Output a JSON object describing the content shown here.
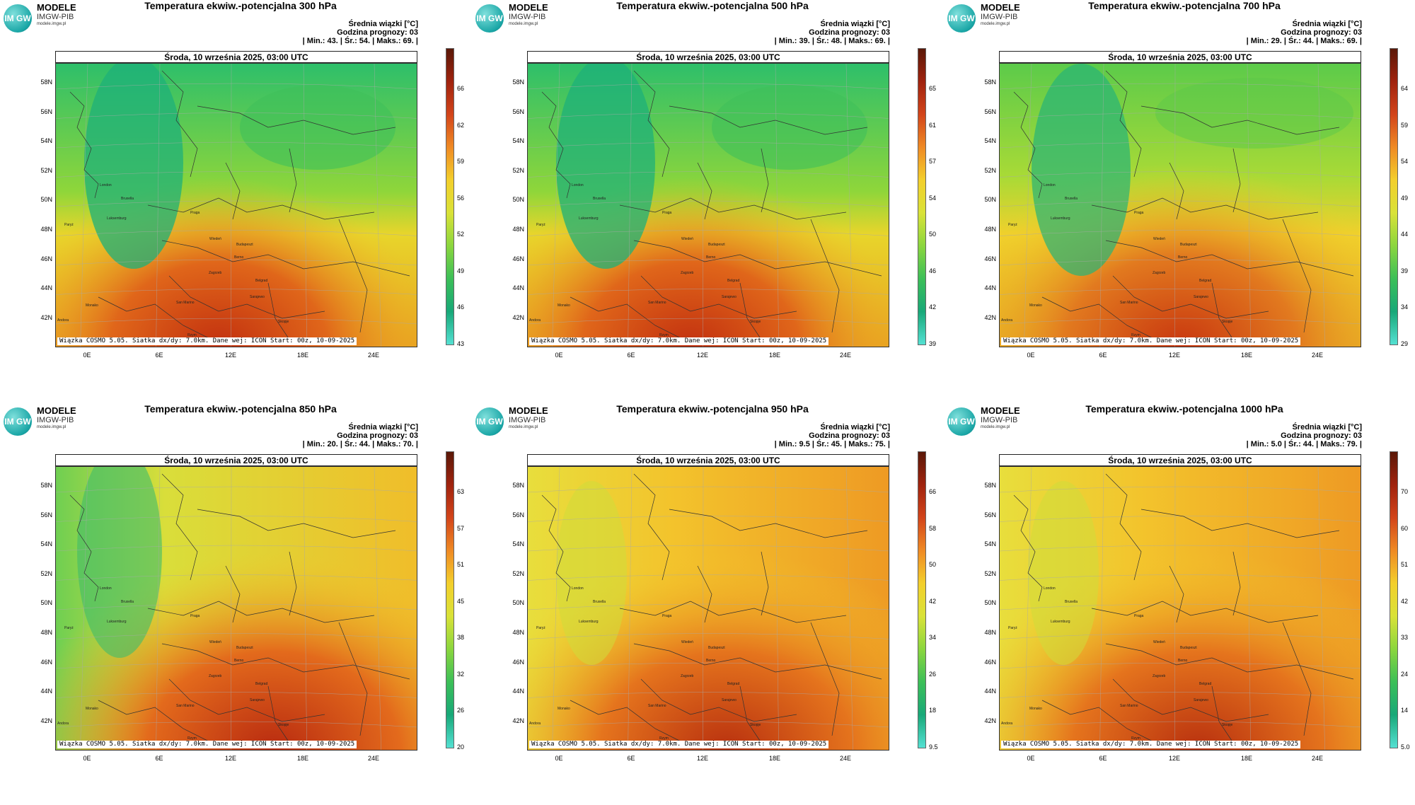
{
  "logo": {
    "mark": "IM GW",
    "line1": "MODELE",
    "line2": "IMGW-PIB",
    "line3": "modele.imgw.pl"
  },
  "common": {
    "stats_title": "Średnia wiązki [°C]",
    "forecast_hour": "Godzina prognozy: 03",
    "date": "Środa, 10 września 2025, 03:00 UTC",
    "footer": "Wiązka COSMO 5.05. Siatka dx/dy: 7.0km. Dane wej: ICON Start: 00z, 10-09-2025",
    "lat_labels": [
      "58N",
      "56N",
      "54N",
      "52N",
      "50N",
      "48N",
      "46N",
      "44N",
      "42N"
    ],
    "lon_labels": [
      "0E",
      "6E",
      "12E",
      "18E",
      "24E"
    ],
    "cities": [
      "London",
      "Bruxella",
      "Paryż",
      "Luksemburg",
      "Praga",
      "Wiedeń",
      "Budapeszt",
      "Berno",
      "Zagrzeb",
      "Belgrad",
      "Monako",
      "San Marino",
      "Sarajewo",
      "Rzym",
      "Skopje",
      "Andora"
    ]
  },
  "panels": [
    {
      "title": "Temperatura ekwiw.-potencjalna 300 hPa",
      "stats_line": "| Min.:    43. | Śr.:    54. | Maks.:    69. |",
      "cbar_labels": [
        "66",
        "62",
        "59",
        "56",
        "52",
        "49",
        "46",
        "43"
      ],
      "scheme": "upper"
    },
    {
      "title": "Temperatura ekwiw.-potencjalna 500 hPa",
      "stats_line": "| Min.:    39. | Śr.:    48. | Maks.:    69. |",
      "cbar_labels": [
        "65",
        "61",
        "57",
        "54",
        "50",
        "46",
        "42",
        "39"
      ],
      "scheme": "upper"
    },
    {
      "title": "Temperatura ekwiw.-potencjalna 700 hPa",
      "stats_line": "| Min.:    29. | Śr.:    44. | Maks.:    69. |",
      "cbar_labels": [
        "64",
        "59",
        "54",
        "49",
        "44",
        "39",
        "34",
        "29"
      ],
      "scheme": "mid"
    },
    {
      "title": "Temperatura ekwiw.-potencjalna 850 hPa",
      "stats_line": "| Min.:    20. | Śr.:    44. | Maks.:    70. |",
      "cbar_labels": [
        "63",
        "57",
        "51",
        "45",
        "38",
        "32",
        "26",
        "20"
      ],
      "scheme": "low"
    },
    {
      "title": "Temperatura ekwiw.-potencjalna 950 hPa",
      "stats_line": "| Min.:    9.5 | Śr.:    45. | Maks.:    75. |",
      "cbar_labels": [
        "66",
        "58",
        "50",
        "42",
        "34",
        "26",
        "18",
        "9.5"
      ],
      "scheme": "warm"
    },
    {
      "title": "Temperatura ekwiw.-potencjalna 1000 hPa",
      "stats_line": "| Min.:    5.0 | Śr.:    44. | Maks.:    79. |",
      "cbar_labels": [
        "70",
        "60",
        "51",
        "42",
        "33",
        "24",
        "14",
        "5.0"
      ],
      "scheme": "warm"
    }
  ]
}
